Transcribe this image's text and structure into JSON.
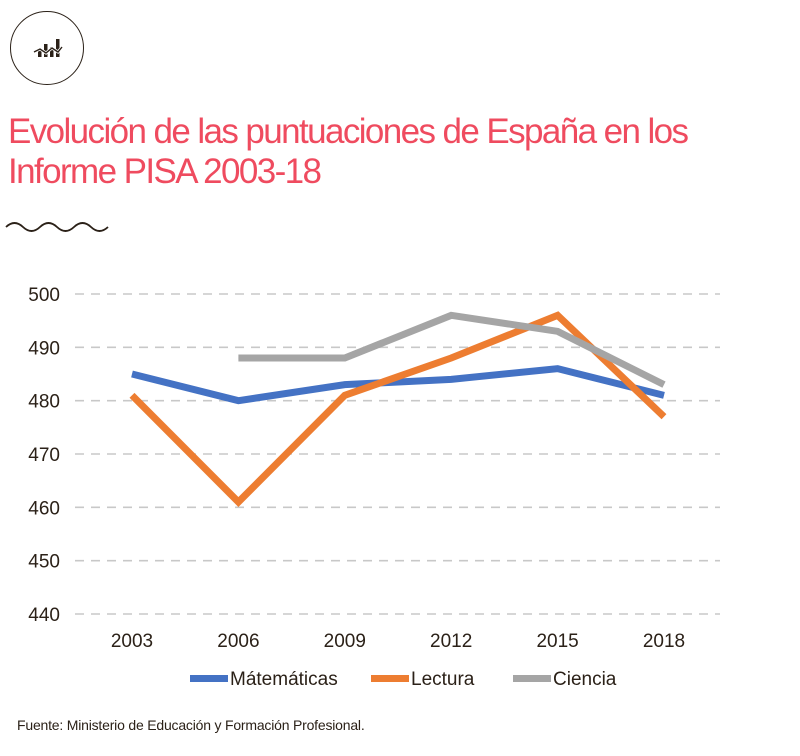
{
  "header": {
    "icon": "chart-growth-icon",
    "title": "Evolución de las puntuaciones de España en los Informe PISA 2003-18",
    "divider_icon": "wave-divider-icon"
  },
  "colors": {
    "title": "#ef4b5f",
    "text": "#2b2118",
    "grid": "#c8c8c8",
    "matematicas": "#4472c4",
    "lectura": "#ed7d31",
    "ciencia": "#a5a5a5"
  },
  "chart_data": {
    "type": "line",
    "title": "Evolución de las puntuaciones de España en los Informe PISA 2003-18",
    "xlabel": "",
    "ylabel": "",
    "categories": [
      "2003",
      "2006",
      "2009",
      "2012",
      "2015",
      "2018"
    ],
    "ylim": [
      440,
      500
    ],
    "yticks": [
      440,
      450,
      460,
      470,
      480,
      490,
      500
    ],
    "grid": "horizontal-dashed",
    "legend_position": "bottom",
    "series": [
      {
        "name": "Mátemáticas",
        "color": "#4472c4",
        "values": [
          485,
          480,
          483,
          484,
          486,
          481
        ]
      },
      {
        "name": "Lectura",
        "color": "#ed7d31",
        "values": [
          481,
          461,
          481,
          488,
          496,
          477
        ]
      },
      {
        "name": "Ciencia",
        "color": "#a5a5a5",
        "values": [
          null,
          488,
          488,
          496,
          493,
          483
        ]
      }
    ]
  },
  "footer": {
    "source": "Fuente: Ministerio de Educación y Formación Profesional."
  }
}
